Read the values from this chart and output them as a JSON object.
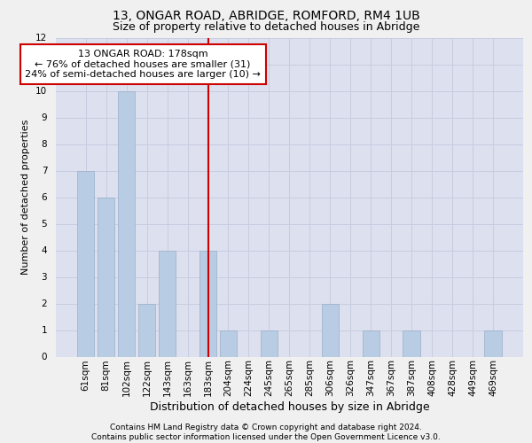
{
  "title1": "13, ONGAR ROAD, ABRIDGE, ROMFORD, RM4 1UB",
  "title2": "Size of property relative to detached houses in Abridge",
  "xlabel": "Distribution of detached houses by size in Abridge",
  "ylabel": "Number of detached properties",
  "categories": [
    "61sqm",
    "81sqm",
    "102sqm",
    "122sqm",
    "143sqm",
    "163sqm",
    "183sqm",
    "204sqm",
    "224sqm",
    "245sqm",
    "265sqm",
    "285sqm",
    "306sqm",
    "326sqm",
    "347sqm",
    "367sqm",
    "387sqm",
    "408sqm",
    "428sqm",
    "449sqm",
    "469sqm"
  ],
  "values": [
    7,
    6,
    10,
    2,
    4,
    0,
    4,
    1,
    0,
    1,
    0,
    0,
    2,
    0,
    1,
    0,
    1,
    0,
    0,
    0,
    1
  ],
  "bar_color": "#b8cce4",
  "bar_edge_color": "#9bafc8",
  "grid_color": "#c8cce0",
  "background_color": "#dde0ee",
  "fig_background": "#f0f0f0",
  "annotation_text": "13 ONGAR ROAD: 178sqm\n← 76% of detached houses are smaller (31)\n24% of semi-detached houses are larger (10) →",
  "annotation_box_color": "#ffffff",
  "annotation_box_edge": "#cc0000",
  "vline_x_index": 6,
  "vline_color": "#cc0000",
  "ylim": [
    0,
    12
  ],
  "yticks": [
    0,
    1,
    2,
    3,
    4,
    5,
    6,
    7,
    8,
    9,
    10,
    11,
    12
  ],
  "footer_text": "Contains HM Land Registry data © Crown copyright and database right 2024.\nContains public sector information licensed under the Open Government Licence v3.0.",
  "title1_fontsize": 10,
  "title2_fontsize": 9,
  "xlabel_fontsize": 9,
  "ylabel_fontsize": 8,
  "tick_fontsize": 7.5,
  "annotation_fontsize": 8,
  "footer_fontsize": 6.5
}
